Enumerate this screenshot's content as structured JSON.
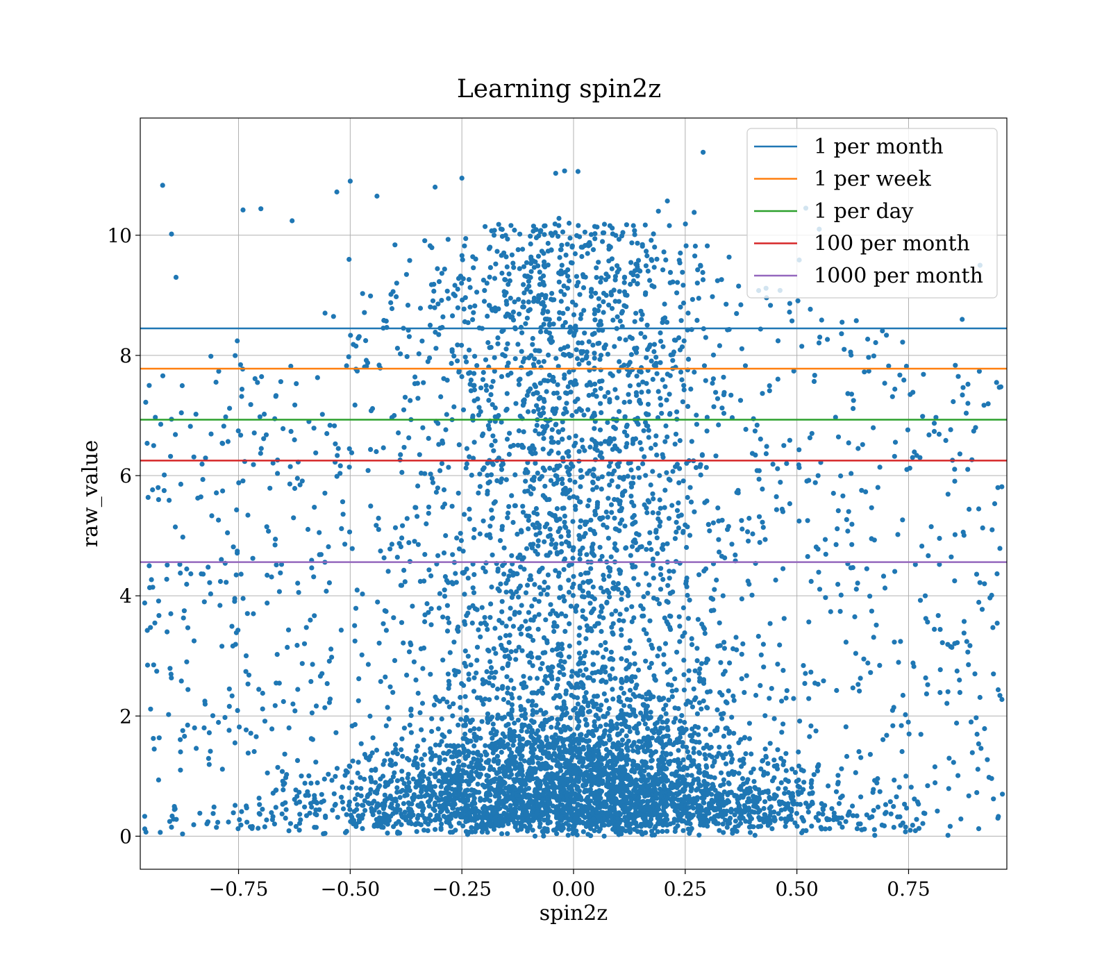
{
  "chart_data": {
    "type": "scatter",
    "title": "Learning spin2z",
    "xlabel": "spin2z",
    "ylabel": "raw_value",
    "xlim": [
      -0.97,
      0.97
    ],
    "ylim": [
      -0.55,
      11.95
    ],
    "xticks": [
      -0.75,
      -0.5,
      -0.25,
      0.0,
      0.25,
      0.5,
      0.75
    ],
    "xtick_labels": [
      "−0.75",
      "−0.50",
      "−0.25",
      "0.00",
      "0.25",
      "0.50",
      "0.75"
    ],
    "yticks": [
      0,
      2,
      4,
      6,
      8,
      10
    ],
    "ytick_labels": [
      "0",
      "2",
      "4",
      "6",
      "8",
      "10"
    ],
    "grid": true,
    "legend_position": "top-right",
    "scatter_color": "#1f77b4",
    "scatter_sample": {
      "note_type": "representative sample of dense point cloud",
      "points": [
        [
          -0.92,
          10.83
        ],
        [
          -0.9,
          10.02
        ],
        [
          -0.89,
          9.3
        ],
        [
          0.29,
          11.38
        ],
        [
          -0.04,
          11.03
        ],
        [
          -0.02,
          11.07
        ],
        [
          0.01,
          11.06
        ],
        [
          -0.25,
          10.95
        ],
        [
          -0.5,
          10.9
        ],
        [
          -0.53,
          10.72
        ],
        [
          -0.44,
          10.65
        ],
        [
          -0.31,
          10.8
        ],
        [
          -0.74,
          10.42
        ],
        [
          -0.7,
          10.44
        ],
        [
          -0.63,
          10.24
        ],
        [
          0.21,
          10.57
        ],
        [
          0.19,
          10.4
        ],
        [
          0.27,
          10.38
        ],
        [
          0.52,
          10.45
        ],
        [
          0.55,
          10.1
        ],
        [
          -0.95,
          7.5
        ],
        [
          -0.96,
          3.88
        ],
        [
          -0.95,
          4.5
        ],
        [
          -0.94,
          6.5
        ],
        [
          -0.93,
          5.8
        ],
        [
          -0.91,
          3.4
        ],
        [
          -0.94,
          2.85
        ],
        [
          -0.96,
          0.33
        ],
        [
          -0.9,
          0.15
        ],
        [
          -0.88,
          1.1
        ],
        [
          0.95,
          5.8
        ],
        [
          0.96,
          0.7
        ],
        [
          0.95,
          0.3
        ],
        [
          0.94,
          2.7
        ],
        [
          0.93,
          0.98
        ],
        [
          0.9,
          6.8
        ],
        [
          0.91,
          9.5
        ],
        [
          0.87,
          8.6
        ],
        [
          0.92,
          4.2
        ],
        [
          0.89,
          1.9
        ],
        [
          0.0,
          0.1
        ],
        [
          0.02,
          0.4
        ],
        [
          -0.03,
          0.8
        ],
        [
          0.05,
          1.2
        ],
        [
          -0.06,
          1.6
        ],
        [
          0.01,
          2.2
        ],
        [
          -0.02,
          2.9
        ],
        [
          0.03,
          3.5
        ],
        [
          0.0,
          4.8
        ],
        [
          -0.04,
          6.0
        ],
        [
          0.06,
          7.2
        ],
        [
          -0.05,
          8.3
        ],
        [
          0.04,
          9.1
        ],
        [
          0.02,
          9.8
        ],
        [
          -0.01,
          10.2
        ]
      ]
    },
    "hlines": [
      {
        "name": "1 per month",
        "y": 8.45,
        "color": "#1f77b4"
      },
      {
        "name": "1 per week",
        "y": 7.78,
        "color": "#ff7f0e"
      },
      {
        "name": "1 per day",
        "y": 6.93,
        "color": "#2ca02c"
      },
      {
        "name": "100 per month",
        "y": 6.25,
        "color": "#d62728"
      },
      {
        "name": "1000 per month",
        "y": 4.56,
        "color": "#9467bd"
      }
    ]
  }
}
